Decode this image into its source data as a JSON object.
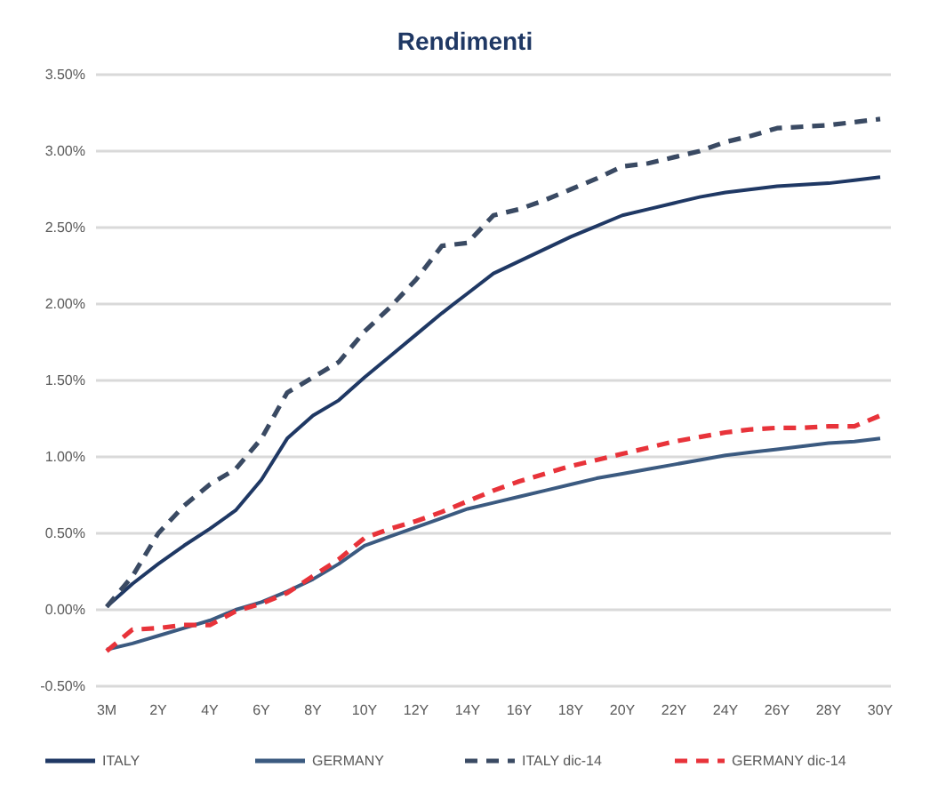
{
  "chart_data": {
    "type": "line",
    "title": "Rendimenti",
    "categories": [
      "3M",
      null,
      "2Y",
      null,
      "4Y",
      null,
      "6Y",
      null,
      "8Y",
      null,
      "10Y",
      null,
      "12Y",
      null,
      "14Y",
      null,
      "16Y",
      null,
      "18Y",
      null,
      "20Y",
      null,
      "22Y",
      null,
      "24Y",
      null,
      "26Y",
      null,
      "28Y",
      null,
      "30Y"
    ],
    "series": [
      {
        "name": "ITALY",
        "color": "#1f3864",
        "line_style": "solid",
        "values": [
          0.02,
          0.17,
          0.3,
          0.42,
          0.53,
          0.65,
          0.85,
          1.12,
          1.27,
          1.37,
          1.52,
          1.66,
          1.8,
          1.94,
          2.07,
          2.2,
          2.28,
          2.36,
          2.44,
          2.51,
          2.58,
          2.62,
          2.66,
          2.7,
          2.73,
          2.75,
          2.77,
          2.78,
          2.79,
          2.81,
          2.83
        ]
      },
      {
        "name": "GERMANY",
        "color": "#3b5a80",
        "line_style": "solid",
        "values": [
          -0.26,
          -0.22,
          -0.17,
          -0.12,
          -0.07,
          0.0,
          0.05,
          0.12,
          0.2,
          0.3,
          0.42,
          0.48,
          0.54,
          0.6,
          0.66,
          0.7,
          0.74,
          0.78,
          0.82,
          0.86,
          0.89,
          0.92,
          0.95,
          0.98,
          1.01,
          1.03,
          1.05,
          1.07,
          1.09,
          1.1,
          1.12
        ]
      },
      {
        "name": "ITALY dic-14",
        "color": "#3a4a63",
        "line_style": "dashed",
        "values": [
          0.02,
          0.22,
          0.5,
          0.68,
          0.82,
          0.92,
          1.12,
          1.42,
          1.52,
          1.62,
          1.82,
          1.98,
          2.16,
          2.38,
          2.4,
          2.58,
          2.62,
          2.68,
          2.75,
          2.82,
          2.9,
          2.92,
          2.96,
          3.0,
          3.06,
          3.1,
          3.15,
          3.16,
          3.17,
          3.19,
          3.21
        ]
      },
      {
        "name": "GERMANY dic-14",
        "color": "#e8333a",
        "line_style": "dashed",
        "values": [
          -0.27,
          -0.13,
          -0.12,
          -0.1,
          -0.1,
          -0.01,
          0.04,
          0.11,
          0.22,
          0.33,
          0.47,
          0.53,
          0.58,
          0.64,
          0.71,
          0.78,
          0.84,
          0.89,
          0.94,
          0.98,
          1.02,
          1.06,
          1.1,
          1.13,
          1.16,
          1.18,
          1.19,
          1.19,
          1.2,
          1.2,
          1.27
        ]
      }
    ],
    "ylim": [
      -0.5,
      3.5
    ],
    "yticks": [
      {
        "value": -0.5,
        "label": "-0.50%"
      },
      {
        "value": 0,
        "label": "0.00%"
      },
      {
        "value": 0.5,
        "label": "0.50%"
      },
      {
        "value": 1,
        "label": "1.00%"
      },
      {
        "value": 1.5,
        "label": "1.50%"
      },
      {
        "value": 2,
        "label": "2.00%"
      },
      {
        "value": 2.5,
        "label": "2.50%"
      },
      {
        "value": 3,
        "label": "3.00%"
      },
      {
        "value": 3.5,
        "label": "3.50%"
      }
    ],
    "grid": "y",
    "legend": "bottom",
    "marker": "none"
  }
}
